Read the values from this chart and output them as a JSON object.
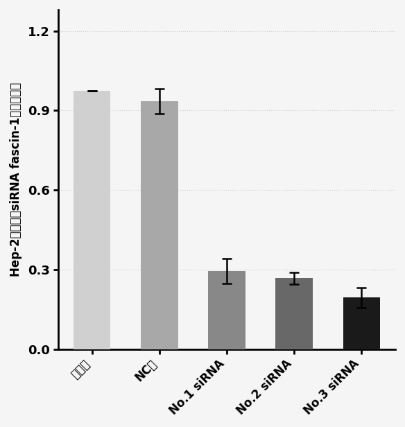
{
  "categories": [
    "空白组",
    "NC组",
    "No.1 siRNA",
    "No.2 siRNA",
    "No.3 siRNA"
  ],
  "values": [
    0.975,
    0.935,
    0.295,
    0.268,
    0.195
  ],
  "errors": [
    0.0,
    0.048,
    0.048,
    0.022,
    0.038
  ],
  "bar_colors": [
    "#d0d0d0",
    "#a8a8a8",
    "#888888",
    "#686868",
    "#1a1a1a"
  ],
  "ylabel": "Hep-2细胞转染siRNA fascin-1相对表达量",
  "ylim": [
    0.0,
    1.28
  ],
  "yticks": [
    0.0,
    0.3,
    0.6,
    0.9,
    1.2
  ],
  "background_color": "#f5f5f5",
  "grid_color": "#cccccc",
  "bar_width": 0.55,
  "tick_label_rotation": 45,
  "ylabel_fontsize": 12,
  "tick_fontsize": 12,
  "axis_fontsize": 13
}
